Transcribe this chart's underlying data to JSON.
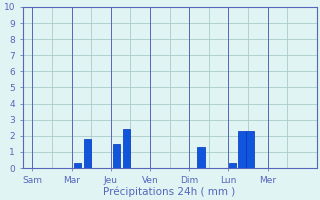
{
  "title": "Précipitations 24h ( mm )",
  "bar_color": "#1155dd",
  "bar_edge_color": "#0033bb",
  "background_color": "#e0f4f4",
  "grid_color": "#aacccc",
  "axis_color": "#5566bb",
  "text_color": "#5566bb",
  "ylim": [
    0,
    10
  ],
  "yticks": [
    0,
    1,
    2,
    3,
    4,
    5,
    6,
    7,
    8,
    9,
    10
  ],
  "xlim": [
    -0.5,
    14.5
  ],
  "day_labels": [
    "Sam",
    "Mar",
    "Jeu",
    "Ven",
    "Dim",
    "Lun",
    "Mer"
  ],
  "day_tick_positions": [
    0,
    2,
    4,
    6,
    8,
    10,
    12
  ],
  "vline_positions": [
    1,
    3,
    5,
    7,
    9,
    11,
    13
  ],
  "bars": [
    {
      "x": 2.3,
      "height": 0.3
    },
    {
      "x": 2.8,
      "height": 1.8
    },
    {
      "x": 4.3,
      "height": 1.5
    },
    {
      "x": 4.8,
      "height": 2.4
    },
    {
      "x": 8.6,
      "height": 1.3
    },
    {
      "x": 10.2,
      "height": 0.3
    },
    {
      "x": 10.7,
      "height": 2.3
    },
    {
      "x": 11.1,
      "height": 2.3
    }
  ],
  "bar_width": 0.38,
  "xlabel_fontsize": 7.5,
  "tick_fontsize": 6.5
}
